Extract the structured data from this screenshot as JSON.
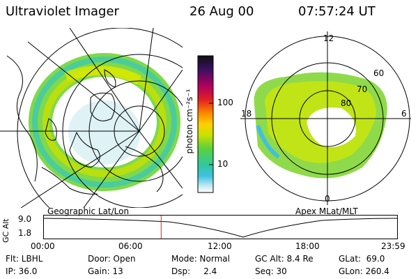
{
  "header": {
    "title": "Ultraviolet Imager",
    "date": "26 Aug 00",
    "time": "07:57:24 UT"
  },
  "left_panel": {
    "caption": "Geographic Lat/Lon"
  },
  "right_panel": {
    "caption": "Apex MLat/MLT",
    "mlt_labels": {
      "top": "12",
      "left": "18",
      "right": "6",
      "bottom": "0"
    },
    "lat_labels": [
      "60",
      "70",
      "80"
    ]
  },
  "colorbar": {
    "unit_label": "photon cm⁻²s⁻¹",
    "ticks": [
      "100",
      "10"
    ],
    "colors": [
      "#111111",
      "#3a1060",
      "#b00060",
      "#e02020",
      "#ff8800",
      "#ffd000",
      "#c8e000",
      "#5ad040",
      "#30c8a0",
      "#40c0e0",
      "#c0e8f0",
      "#ffffff"
    ]
  },
  "altitude_plot": {
    "ylabel": "GC Alt",
    "y_ticks": [
      "9.0",
      "1.8"
    ],
    "x_ticks": [
      "00:00",
      "06:00",
      "12:00",
      "18:00",
      "23:59"
    ],
    "marker_time": "07:57",
    "marker_fraction": 0.332
  },
  "footer": {
    "row1": [
      "Flt: LBHL",
      "Door: Open",
      "Mode: Normal",
      "GC Alt: 8.4 Re",
      "GLat:  69.0"
    ],
    "row2": [
      "IP: 36.0",
      "Gain: 13",
      "Dsp:     2.4",
      "Seq: 30",
      "GLon: 260.4"
    ]
  }
}
